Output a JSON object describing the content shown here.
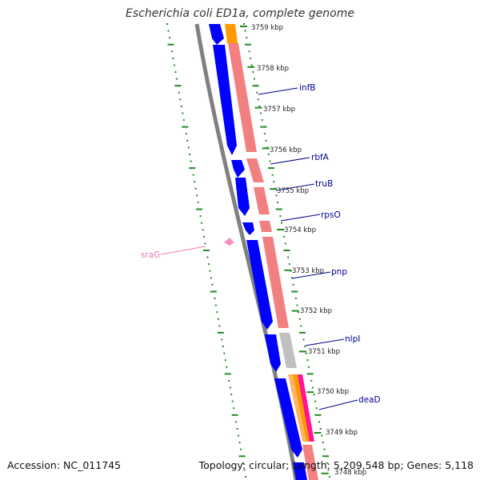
{
  "title": "Escherichia coli ED1a, complete genome",
  "footer": {
    "accession": "Accession: NC_011745",
    "summary": "Topology: circular; Length: 5,209,548 bp; Genes: 5,118"
  },
  "ticks": [
    "3759 kbp",
    "3758 kbp",
    "3757 kbp",
    "3756 kbp",
    "3755 kbp",
    "3754 kbp",
    "3753 kbp",
    "3752 kbp",
    "3751 kbp",
    "3750 kbp",
    "3749 kbp",
    "3748 kbp"
  ],
  "genes": [
    {
      "name": "infB",
      "color": "#00008b"
    },
    {
      "name": "rbfA",
      "color": "#00008b"
    },
    {
      "name": "truB",
      "color": "#00008b"
    },
    {
      "name": "rpsO",
      "color": "#00008b"
    },
    {
      "name": "pnp",
      "color": "#00008b"
    },
    {
      "name": "nlpI",
      "color": "#00008b"
    },
    {
      "name": "deaD",
      "color": "#00008b"
    },
    {
      "name": "sraG",
      "color": "#e879b4"
    }
  ],
  "colors": {
    "cds": "#0000ff",
    "rna": "#f28080",
    "backbone": "#808080",
    "gc_dash": "#228b22",
    "orange": "#ff9900",
    "grey_feature": "#c0c0c0",
    "magenta": "#ff1493",
    "srag_marker": "#f48fc4"
  }
}
